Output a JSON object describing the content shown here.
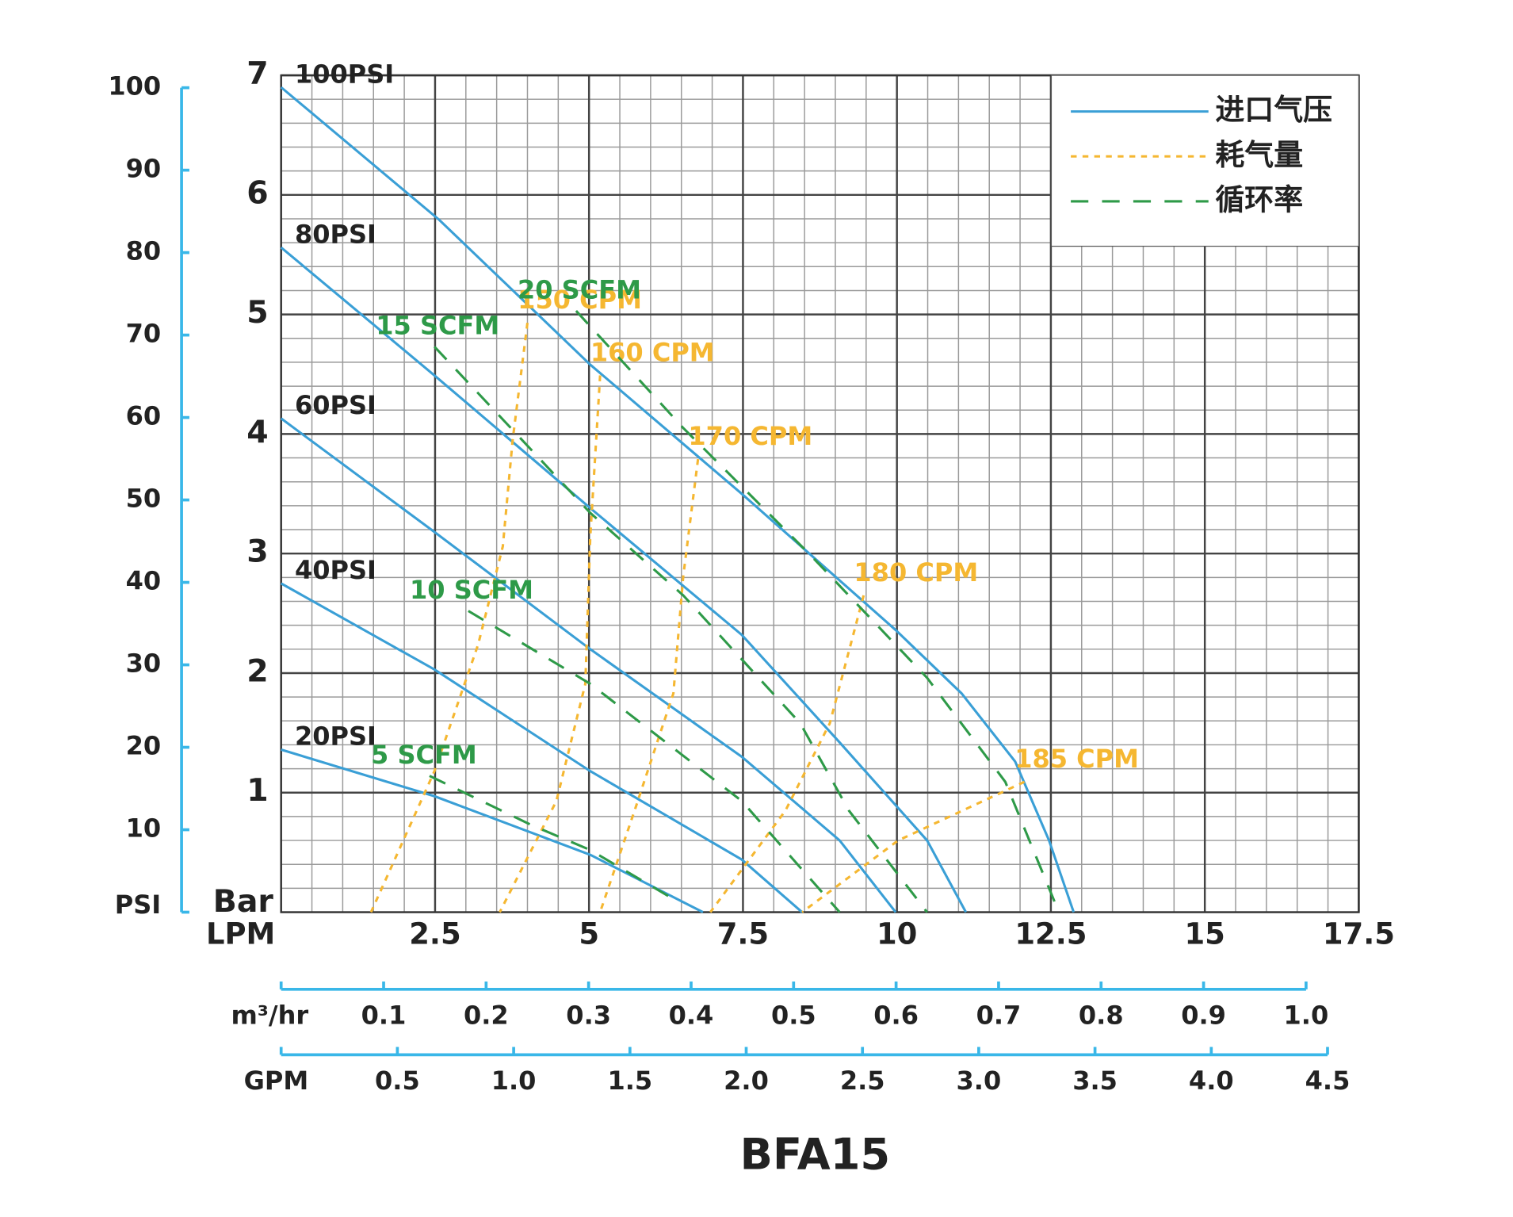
{
  "chart_data": {
    "type": "line",
    "title": "BFA15",
    "xlabel": "LPM",
    "ylabel": "Bar",
    "xlim": [
      0,
      17.5
    ],
    "xticks": [
      2.5,
      5,
      7.5,
      10,
      12.5,
      15,
      17.5
    ],
    "ylim": [
      0,
      7
    ],
    "yticks": [
      1,
      2,
      3,
      4,
      5,
      6,
      7
    ],
    "y2label": "PSI",
    "y2lim": [
      0,
      101.5
    ],
    "y2ticks": [
      10,
      20,
      30,
      40,
      50,
      60,
      70,
      80,
      90,
      100
    ],
    "grid": true,
    "minor_grid": true,
    "extra_x_axes": [
      {
        "label": "m³/hr",
        "lim": [
          0,
          1
        ],
        "ticks": [
          0.1,
          0.2,
          0.3,
          0.4,
          0.5,
          0.6,
          0.7,
          0.8,
          0.9,
          {
            "value": 1,
            "label": "1.0"
          }
        ]
      },
      {
        "label": "GPM",
        "lim": [
          0,
          4.5
        ],
        "ticks": [
          0.5,
          {
            "value": 1,
            "label": "1.0"
          },
          1.5,
          {
            "value": 2,
            "label": "2.0"
          },
          2.5,
          {
            "value": 3,
            "label": "3.0"
          },
          3.5,
          {
            "value": 4,
            "label": "4.0"
          },
          4.5
        ]
      }
    ],
    "legend": "upper right",
    "series": [
      {
        "name": "进口气压",
        "color": "#3a9fd6",
        "dash": "solid",
        "curves": [
          {
            "label": "100PSI",
            "x": [
              0,
              2.57,
              5.02,
              7.48,
              9.98,
              11.05,
              11.92,
              12.47,
              12.87
            ],
            "values": [
              6.9,
              5.79,
              4.58,
              3.5,
              2.36,
              1.83,
              1.26,
              0.6,
              0
            ]
          },
          {
            "label": "80PSI",
            "x": [
              0,
              2.49,
              5.02,
              7.48,
              9.07,
              10.49,
              11.12
            ],
            "values": [
              5.56,
              4.49,
              3.38,
              2.32,
              1.42,
              0.6,
              0
            ]
          },
          {
            "label": "60PSI",
            "x": [
              0,
              2.49,
              5.02,
              7.48,
              9.07,
              9.98
            ],
            "values": [
              4.13,
              3.18,
              2.2,
              1.3,
              0.6,
              0
            ]
          },
          {
            "label": "40PSI",
            "x": [
              0,
              2.49,
              5.02,
              7.48,
              8.46
            ],
            "values": [
              2.75,
              2.03,
              1.18,
              0.44,
              0
            ]
          },
          {
            "label": "20PSI",
            "x": [
              0,
              2.49,
              5.02,
              6.85
            ],
            "values": [
              1.36,
              0.97,
              0.48,
              0
            ]
          }
        ]
      },
      {
        "name": "耗气量",
        "color": "#f5b731",
        "dash": "dotted",
        "curves": [
          {
            "label": "150 CPM",
            "x": [
              4.0,
              3.76,
              3.6,
              3.2,
              2.49,
              1.46
            ],
            "values": [
              4.93,
              3.95,
              3.06,
              2.24,
              1.18,
              0
            ]
          },
          {
            "label": "160 CPM",
            "x": [
              5.18,
              5.02,
              4.94,
              4.47,
              3.55
            ],
            "values": [
              4.49,
              3.14,
              1.91,
              0.93,
              0
            ]
          },
          {
            "label": "170 CPM",
            "x": [
              6.77,
              6.53,
              6.37,
              5.74,
              5.18
            ],
            "values": [
              3.79,
              2.81,
              1.83,
              0.85,
              0
            ]
          },
          {
            "label": "180 CPM",
            "x": [
              9.46,
              8.91,
              8.19,
              6.97
            ],
            "values": [
              2.65,
              1.58,
              0.85,
              0
            ]
          },
          {
            "label": "185 CPM",
            "x": [
              12.07,
              10.02,
              8.46
            ],
            "values": [
              1.09,
              0.6,
              0
            ]
          }
        ]
      },
      {
        "name": "循环率",
        "color": "#2e9a48",
        "dash": "dashed",
        "curves": [
          {
            "label": "20 SCFM",
            "x": [
              4.79,
              6.53,
              8.59,
              10.49,
              11.76,
              12.63
            ],
            "values": [
              5.03,
              4.05,
              2.99,
              1.96,
              1.09,
              0
            ]
          },
          {
            "label": "15 SCFM",
            "x": [
              2.49,
              3.84,
              5.02,
              6.53,
              8.43,
              9.22,
              10.49
            ],
            "values": [
              4.73,
              3.99,
              3.34,
              2.65,
              1.58,
              0.85,
              0
            ]
          },
          {
            "label": "10 SCFM",
            "x": [
              3.04,
              5.02,
              7.48,
              9.07
            ],
            "values": [
              2.52,
              1.91,
              0.93,
              0
            ]
          },
          {
            "label": "5 SCFM",
            "x": [
              2.41,
              4.06,
              5.02,
              6.37
            ],
            "values": [
              1.14,
              0.73,
              0.52,
              0.11
            ]
          }
        ]
      }
    ]
  }
}
